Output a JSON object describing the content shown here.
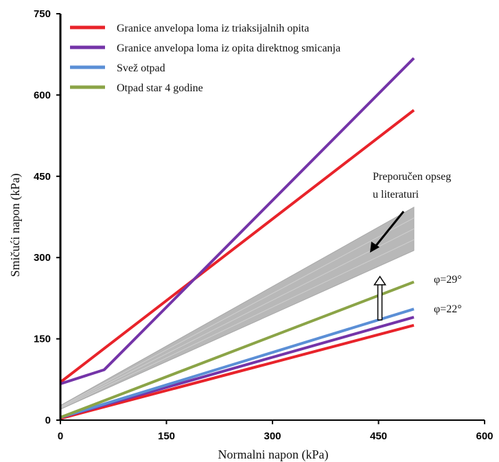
{
  "chart_data": {
    "type": "line",
    "title": "",
    "xlabel": "Normalni napon (kPa)",
    "ylabel": "Smičući napon (kPa)",
    "xlim": [
      0,
      600
    ],
    "ylim": [
      0,
      750
    ],
    "xticks": [
      0,
      150,
      300,
      450,
      600
    ],
    "yticks": [
      0,
      150,
      300,
      450,
      600,
      750
    ],
    "grid": false,
    "legend_position": "top-left",
    "legend": [
      {
        "label": "Granice anvelopa loma iz triaksijalnih opita",
        "color": "#e8232a"
      },
      {
        "label": "Granice anvelopa loma iz opita direktnog smicanja",
        "color": "#7434a8"
      },
      {
        "label": "Svež otpad",
        "color": "#5b8fd6"
      },
      {
        "label": "Otpad star 4 godine",
        "color": "#8ba447"
      }
    ],
    "series": [
      {
        "name": "Granice anvelopa loma iz triaksijalnih opita",
        "color": "#e8232a",
        "lines": [
          [
            [
              0,
              70
            ],
            [
              500,
              572
            ]
          ],
          [
            [
              0,
              3
            ],
            [
              500,
              175
            ]
          ]
        ]
      },
      {
        "name": "Granice anvelopa loma iz opita direktnog smicanja",
        "color": "#7434a8",
        "lines": [
          [
            [
              0,
              67
            ],
            [
              62,
              93
            ],
            [
              500,
              668
            ]
          ],
          [
            [
              0,
              5
            ],
            [
              500,
              190
            ]
          ]
        ]
      },
      {
        "name": "Svež otpad",
        "color": "#5b8fd6",
        "lines": [
          [
            [
              0,
              5
            ],
            [
              500,
              205
            ]
          ]
        ]
      },
      {
        "name": "Otpad star 4 godine",
        "color": "#8ba447",
        "lines": [
          [
            [
              0,
              5
            ],
            [
              500,
              255
            ]
          ]
        ]
      }
    ],
    "band": {
      "color": "#b8b8b8",
      "upper": [
        [
          0,
          27
        ],
        [
          500,
          393
        ]
      ],
      "lower": [
        [
          0,
          20
        ],
        [
          500,
          313
        ]
      ]
    },
    "annotations": {
      "range_label_line1": "Preporučen opseg",
      "range_label_line2": "u literaturi",
      "phi_upper": "φ=29°",
      "phi_lower": "φ=22°",
      "arrow_up_at_x": 450,
      "arrow_up_from_y": 185,
      "arrow_up_to_y": 265
    }
  }
}
